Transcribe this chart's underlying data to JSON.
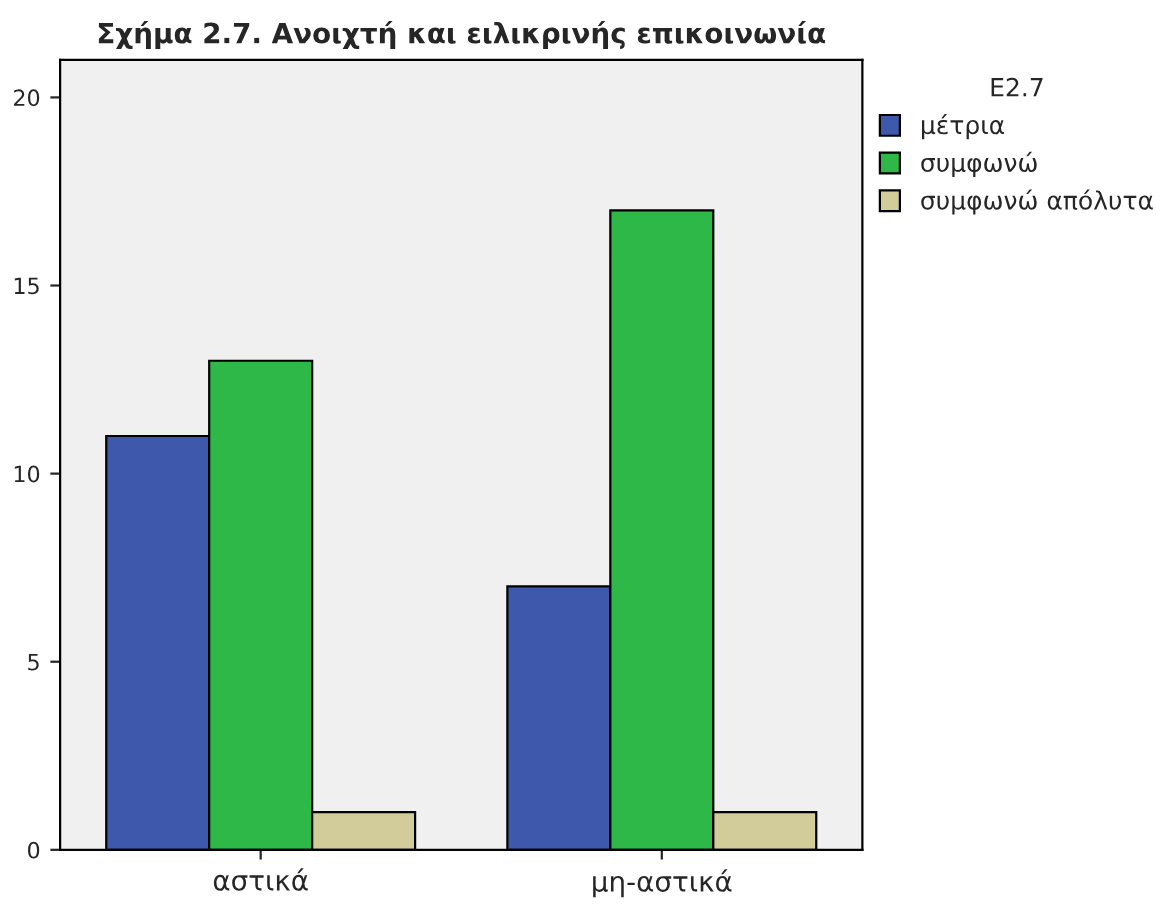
{
  "chart_data": {
    "type": "bar",
    "title": "Σχήμα 2.7. Ανοιχτή και ειλικρινής επικοινωνία",
    "legend_title": "E2.7",
    "categories": [
      "αστικά",
      "μη-αστικά"
    ],
    "series": [
      {
        "name": "μέτρια",
        "color": "#3e58ac",
        "values": [
          11,
          7
        ]
      },
      {
        "name": "συμφωνώ",
        "color": "#2eb848",
        "values": [
          13,
          17
        ]
      },
      {
        "name": "συμφωνώ απόλυτα",
        "color": "#d2cc9b",
        "values": [
          1,
          1
        ]
      }
    ],
    "ylim": [
      0,
      21
    ],
    "yticks": [
      0,
      5,
      10,
      15,
      20
    ],
    "grid": false,
    "legend": "top right"
  }
}
